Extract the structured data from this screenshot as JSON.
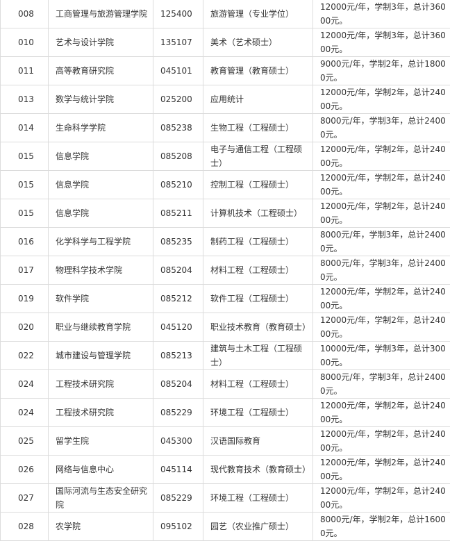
{
  "table": {
    "rows": [
      [
        "008",
        "工商管理与旅游管理学院",
        "125400",
        "旅游管理（专业学位）",
        "12000元/年，学制3年，总计36000元。"
      ],
      [
        "010",
        "艺术与设计学院",
        "135107",
        "美术（艺术硕士）",
        "12000元/年，学制3年，总计36000元。"
      ],
      [
        "011",
        "高等教育研究院",
        "045101",
        "教育管理（教育硕士）",
        "9000元/年，学制2年，总计18000元。"
      ],
      [
        "013",
        "数学与统计学院",
        "025200",
        "应用统计",
        "12000元/年，学制2年，总计24000元。"
      ],
      [
        "014",
        "生命科学学院",
        "085238",
        "生物工程（工程硕士）",
        "8000元/年，学制3年，总计24000元。"
      ],
      [
        "015",
        "信息学院",
        "085208",
        "电子与通信工程（工程硕士）",
        "12000元/年，学制2年，总计24000元。"
      ],
      [
        "015",
        "信息学院",
        "085210",
        "控制工程（工程硕士）",
        "12000元/年，学制2年，总计24000元。"
      ],
      [
        "015",
        "信息学院",
        "085211",
        "计算机技术（工程硕士）",
        "12000元/年，学制2年，总计24000元。"
      ],
      [
        "016",
        "化学科学与工程学院",
        "085235",
        "制药工程（工程硕士）",
        "8000元/年，学制3年，总计24000元。"
      ],
      [
        "017",
        "物理科学技术学院",
        "085204",
        "材料工程（工程硕士）",
        "8000元/年，学制3年，总计24000元。"
      ],
      [
        "019",
        "软件学院",
        "085212",
        "软件工程（工程硕士）",
        "12000元/年，学制2年，总计24000元。"
      ],
      [
        "020",
        "职业与继续教育学院",
        "045120",
        "职业技术教育（教育硕士）",
        "12000元/年，学制2年，总计24000元。"
      ],
      [
        "022",
        "城市建设与管理学院",
        "085213",
        "建筑与土木工程（工程硕士）",
        "10000元/年，学制3年，总计30000元。"
      ],
      [
        "024",
        "工程技术研究院",
        "085204",
        "材料工程（工程硕士）",
        "8000元/年，学制3年，总计24000元。"
      ],
      [
        "024",
        "工程技术研究院",
        "085229",
        "环境工程（工程硕士）",
        "12000元/年，学制2年，总计24000元。"
      ],
      [
        "025",
        "留学生院",
        "045300",
        "汉语国际教育",
        "12000元/年，学制2年，总计24000元。"
      ],
      [
        "026",
        "网络与信息中心",
        "045114",
        "现代教育技术（教育硕士）",
        "12000元/年，学制2年，总计24000元。"
      ],
      [
        "027",
        "国际河流与生态安全研究院",
        "085229",
        "环境工程（工程硕士）",
        "12000元/年，学制2年，总计24000元。"
      ],
      [
        "028",
        "农学院",
        "095102",
        "园艺（农业推广硕士）",
        "8000元/年，学制2年，总计16000元。"
      ]
    ]
  }
}
